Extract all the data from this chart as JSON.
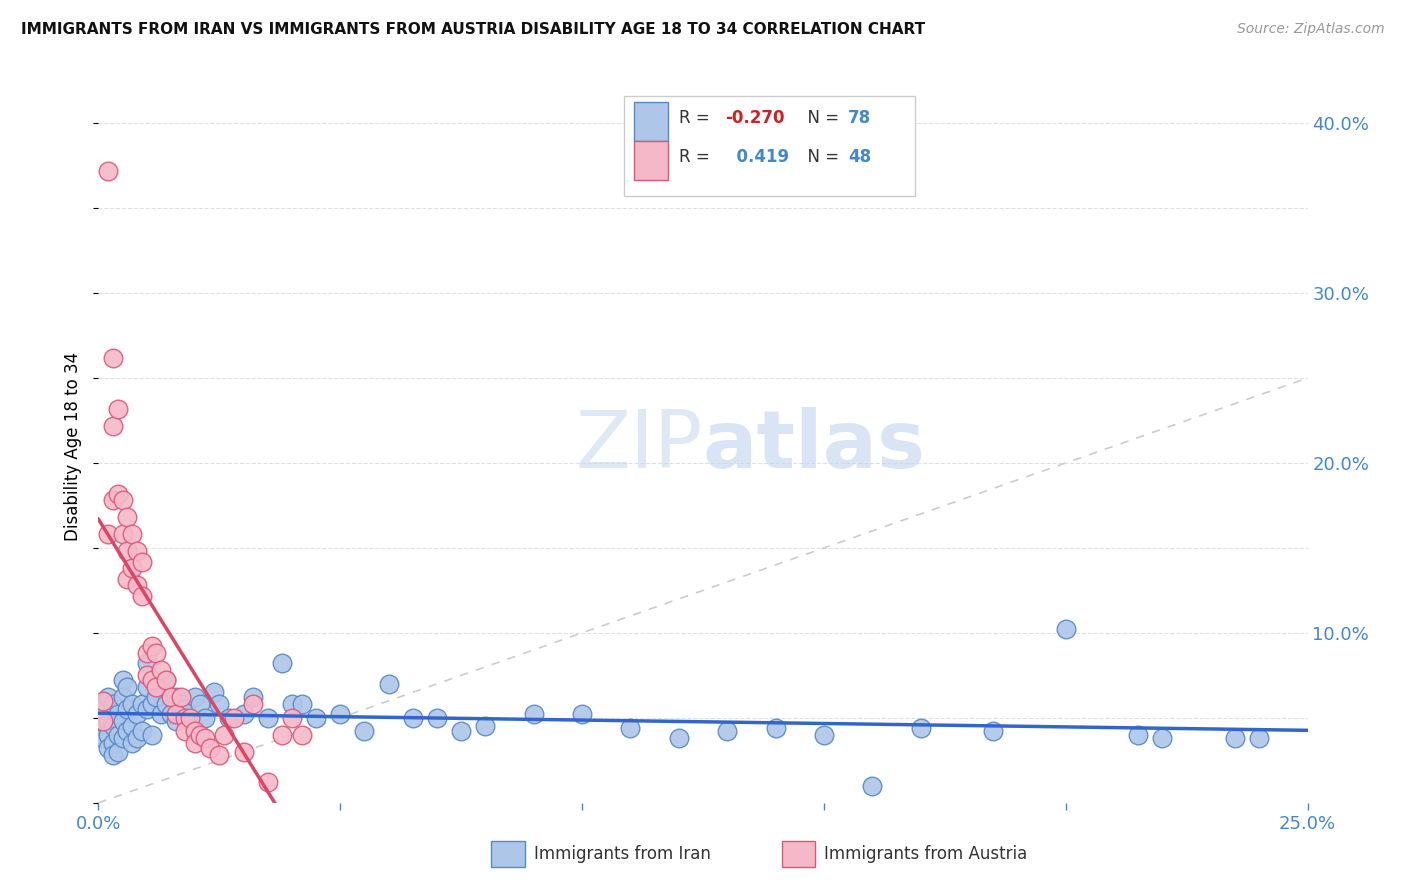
{
  "title": "IMMIGRANTS FROM IRAN VS IMMIGRANTS FROM AUSTRIA DISABILITY AGE 18 TO 34 CORRELATION CHART",
  "source": "Source: ZipAtlas.com",
  "xlabel_iran": "Immigrants from Iran",
  "xlabel_austria": "Immigrants from Austria",
  "ylabel": "Disability Age 18 to 34",
  "r_iran": -0.27,
  "n_iran": 78,
  "r_austria": 0.419,
  "n_austria": 48,
  "iran_color": "#aec6e8",
  "iran_edge_color": "#5588cc",
  "austria_color": "#f5b8c8",
  "austria_edge_color": "#e05575",
  "iran_line_color": "#3366cc",
  "austria_line_color": "#dd4466",
  "diag_color": "#cccccc",
  "watermark_color": "#c8d8f0",
  "tick_color": "#4488cc",
  "xlim": [
    0.0,
    0.25
  ],
  "ylim": [
    0.0,
    0.42
  ],
  "xticks": [
    0.0,
    0.05,
    0.1,
    0.15,
    0.2,
    0.25
  ],
  "xticklabels": [
    "0.0%",
    "",
    "",
    "",
    "",
    "25.0%"
  ],
  "yticks_right": [
    0.0,
    0.1,
    0.2,
    0.3,
    0.4
  ],
  "yticklabels_right": [
    "",
    "10.0%",
    "20.0%",
    "30.0%",
    "40.0%"
  ],
  "iran_x": [
    0.001,
    0.001,
    0.001,
    0.002,
    0.002,
    0.002,
    0.002,
    0.003,
    0.003,
    0.003,
    0.003,
    0.004,
    0.004,
    0.004,
    0.005,
    0.005,
    0.005,
    0.005,
    0.006,
    0.006,
    0.006,
    0.007,
    0.007,
    0.007,
    0.008,
    0.008,
    0.009,
    0.009,
    0.01,
    0.01,
    0.01,
    0.011,
    0.011,
    0.012,
    0.013,
    0.014,
    0.014,
    0.015,
    0.016,
    0.016,
    0.017,
    0.018,
    0.019,
    0.02,
    0.021,
    0.022,
    0.024,
    0.025,
    0.027,
    0.03,
    0.032,
    0.035,
    0.038,
    0.04,
    0.042,
    0.045,
    0.05,
    0.055,
    0.06,
    0.065,
    0.07,
    0.075,
    0.08,
    0.09,
    0.1,
    0.11,
    0.12,
    0.13,
    0.14,
    0.15,
    0.16,
    0.17,
    0.185,
    0.2,
    0.215,
    0.22,
    0.235,
    0.24
  ],
  "iran_y": [
    0.058,
    0.045,
    0.038,
    0.062,
    0.048,
    0.04,
    0.032,
    0.058,
    0.045,
    0.035,
    0.028,
    0.052,
    0.04,
    0.03,
    0.072,
    0.062,
    0.048,
    0.038,
    0.068,
    0.055,
    0.042,
    0.058,
    0.045,
    0.035,
    0.052,
    0.038,
    0.058,
    0.042,
    0.082,
    0.068,
    0.055,
    0.058,
    0.04,
    0.062,
    0.052,
    0.072,
    0.058,
    0.052,
    0.062,
    0.048,
    0.058,
    0.055,
    0.048,
    0.062,
    0.058,
    0.05,
    0.065,
    0.058,
    0.05,
    0.052,
    0.062,
    0.05,
    0.082,
    0.058,
    0.058,
    0.05,
    0.052,
    0.042,
    0.07,
    0.05,
    0.05,
    0.042,
    0.045,
    0.052,
    0.052,
    0.044,
    0.038,
    0.042,
    0.044,
    0.04,
    0.01,
    0.044,
    0.042,
    0.102,
    0.04,
    0.038,
    0.038,
    0.038
  ],
  "austria_x": [
    0.001,
    0.001,
    0.002,
    0.002,
    0.003,
    0.003,
    0.003,
    0.004,
    0.004,
    0.005,
    0.005,
    0.006,
    0.006,
    0.006,
    0.007,
    0.007,
    0.008,
    0.008,
    0.009,
    0.009,
    0.01,
    0.01,
    0.011,
    0.011,
    0.012,
    0.012,
    0.013,
    0.014,
    0.015,
    0.016,
    0.017,
    0.018,
    0.018,
    0.019,
    0.02,
    0.02,
    0.021,
    0.022,
    0.023,
    0.025,
    0.026,
    0.028,
    0.03,
    0.032,
    0.035,
    0.038,
    0.04,
    0.042
  ],
  "austria_y": [
    0.06,
    0.048,
    0.372,
    0.158,
    0.262,
    0.222,
    0.178,
    0.232,
    0.182,
    0.178,
    0.158,
    0.168,
    0.148,
    0.132,
    0.158,
    0.138,
    0.148,
    0.128,
    0.142,
    0.122,
    0.088,
    0.075,
    0.092,
    0.072,
    0.088,
    0.068,
    0.078,
    0.072,
    0.062,
    0.052,
    0.062,
    0.05,
    0.042,
    0.05,
    0.042,
    0.035,
    0.04,
    0.038,
    0.032,
    0.028,
    0.04,
    0.05,
    0.03,
    0.058,
    0.012,
    0.04,
    0.05,
    0.04
  ]
}
